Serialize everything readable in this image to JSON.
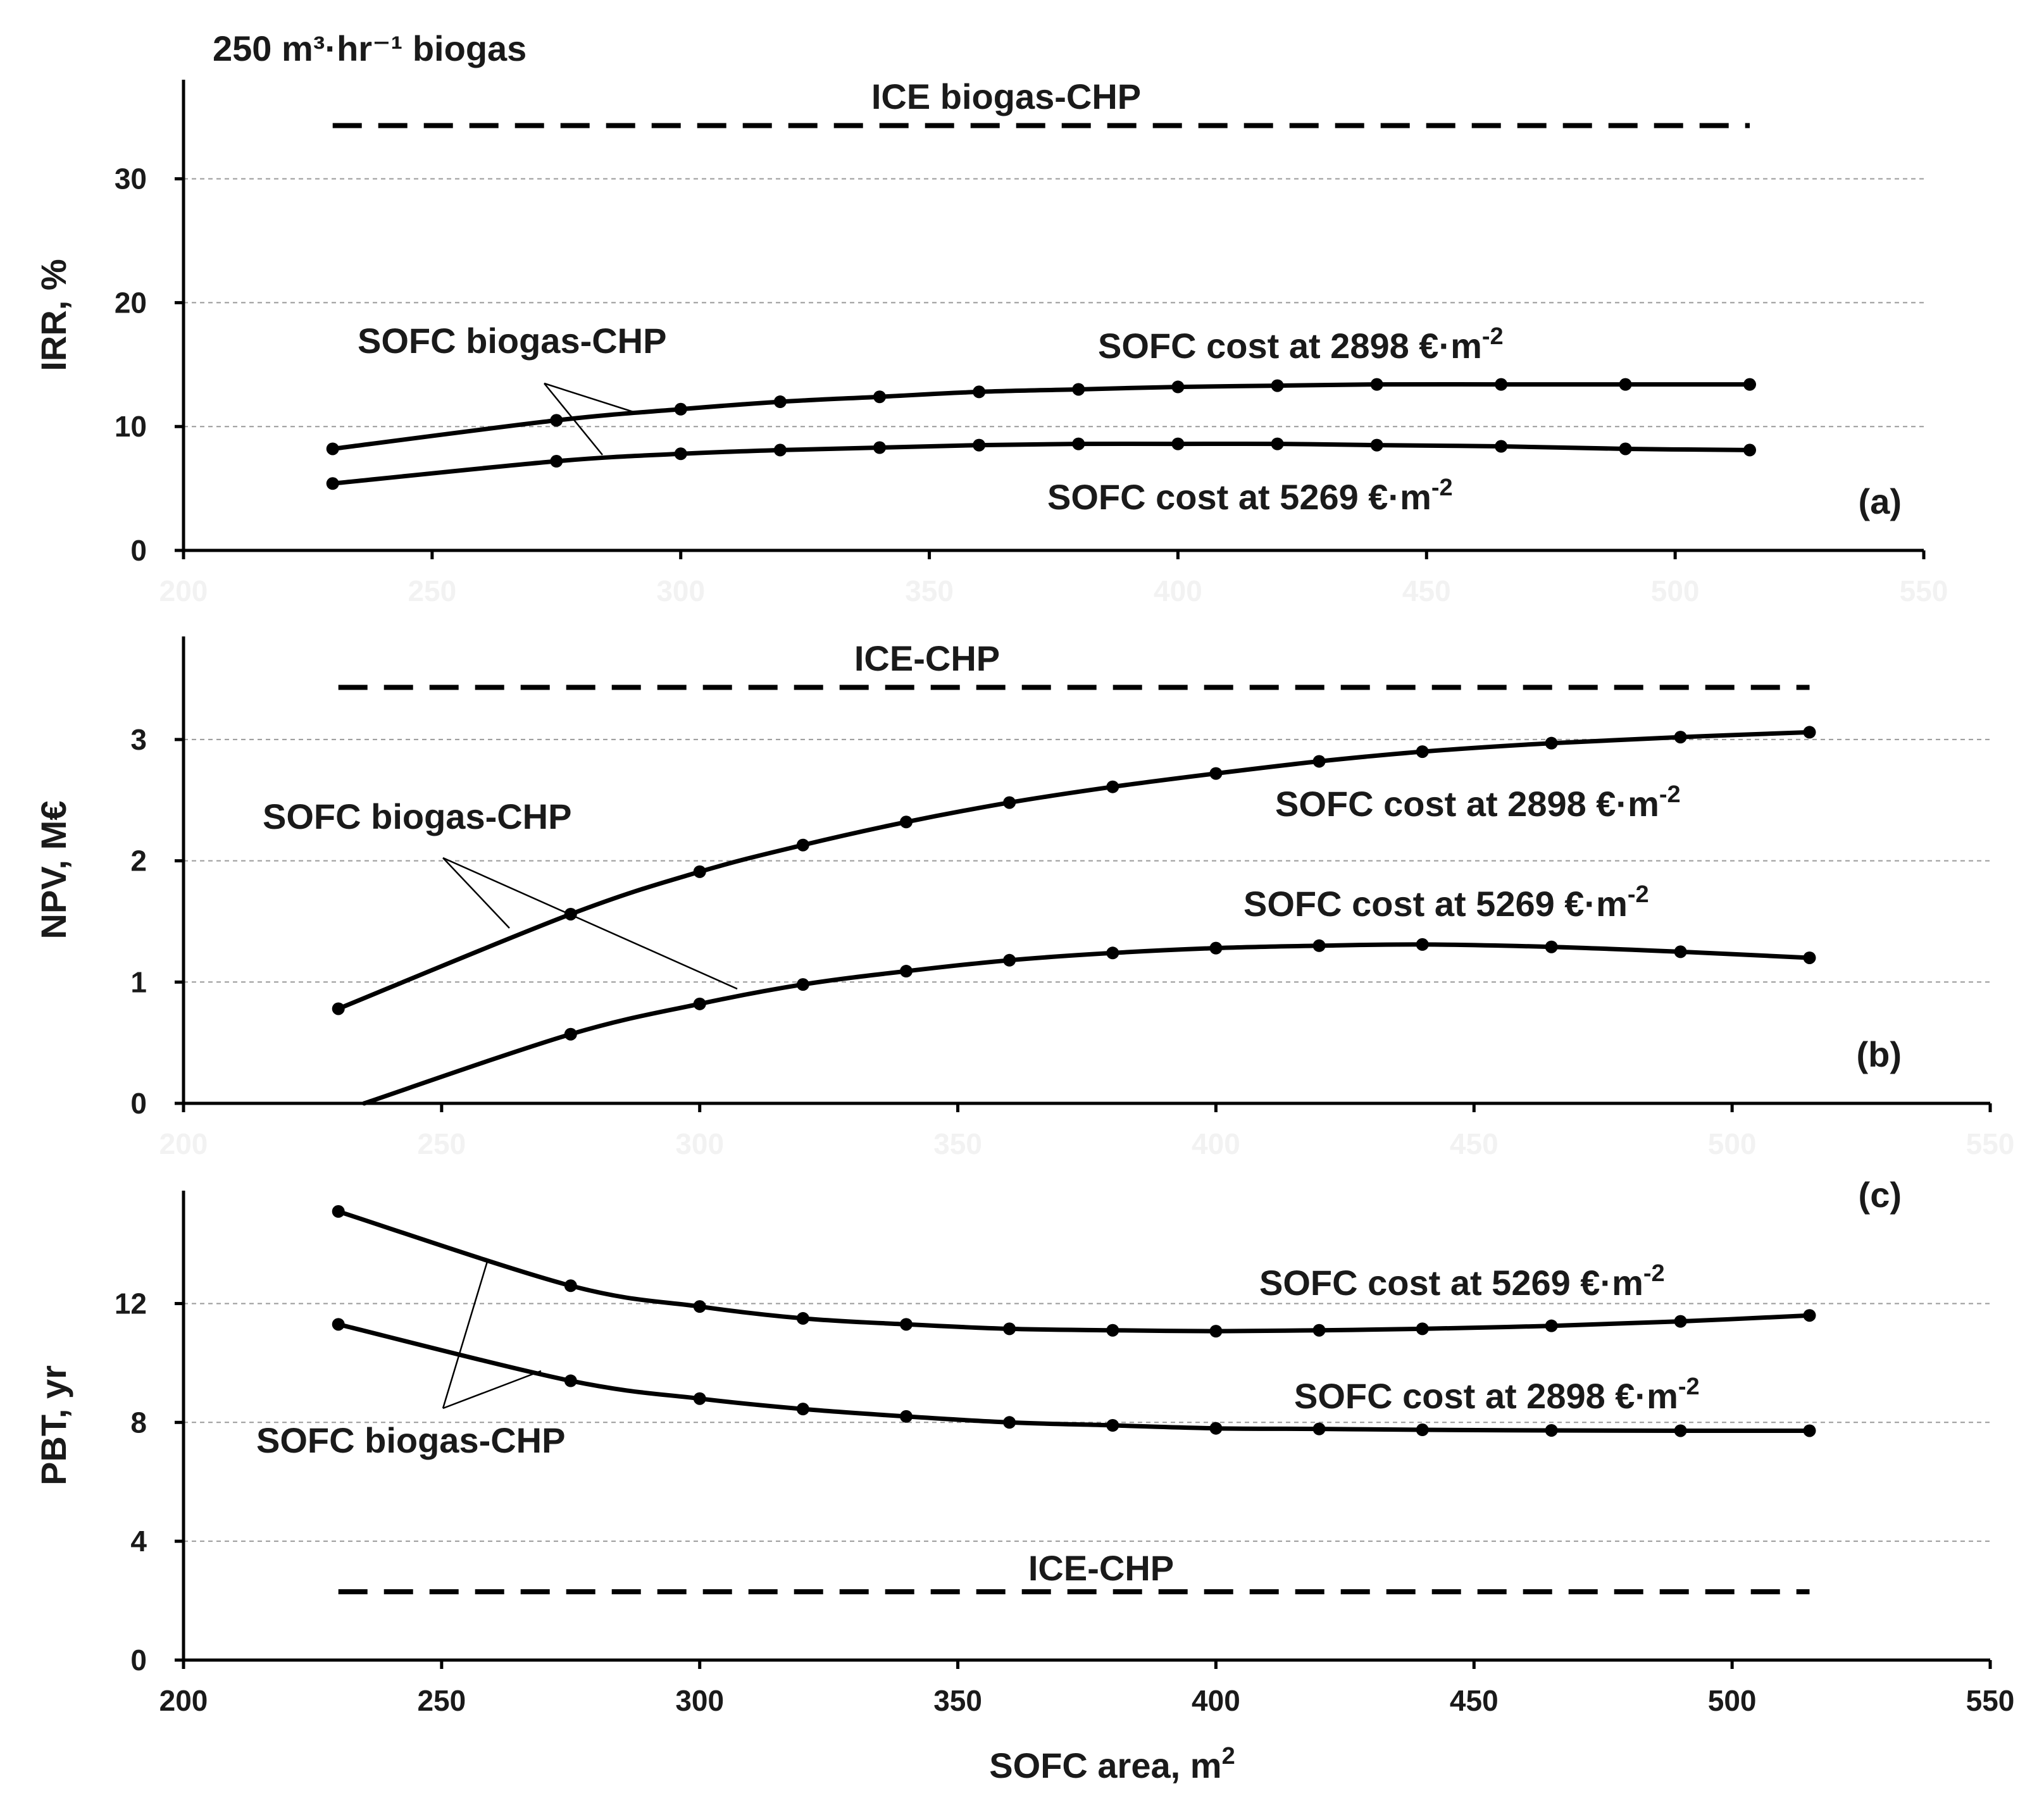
{
  "figure_title": "250 m³·hr⁻¹ biogas",
  "chart_data": [
    {
      "id": "a",
      "type": "line",
      "panel_label": "(a)",
      "ylabel": "IRR, %",
      "xlabel": "",
      "xlim": [
        200,
        550
      ],
      "ylim": [
        0,
        38
      ],
      "xticks": [
        200,
        250,
        300,
        350,
        400,
        450,
        500,
        550
      ],
      "yticks": [
        0,
        10,
        20,
        30
      ],
      "x_tick_labels_visible": false,
      "grid": true,
      "x": [
        230,
        275,
        300,
        320,
        340,
        360,
        380,
        400,
        420,
        440,
        465,
        490,
        515
      ],
      "series": [
        {
          "name": "SOFC cost at 2898 €·m⁻²",
          "label_base": "SOFC cost at 2898 €·m",
          "label_exp": "-2",
          "values": [
            8.2,
            10.5,
            11.4,
            12.0,
            12.4,
            12.8,
            13.0,
            13.2,
            13.3,
            13.4,
            13.4,
            13.4,
            13.4
          ]
        },
        {
          "name": "SOFC cost at 5269 €·m⁻²",
          "label_base": "SOFC cost at 5269 €·m",
          "label_exp": "-2",
          "values": [
            5.4,
            7.2,
            7.8,
            8.1,
            8.3,
            8.5,
            8.6,
            8.6,
            8.6,
            8.5,
            8.4,
            8.2,
            8.1
          ]
        }
      ],
      "reference": {
        "name": "ICE biogas-CHP",
        "value": 34.3,
        "x_range": [
          230,
          515
        ]
      },
      "group_label": "SOFC biogas-CHP"
    },
    {
      "id": "b",
      "type": "line",
      "panel_label": "(b)",
      "ylabel": "NPV, M€",
      "xlabel": "",
      "xlim": [
        200,
        550
      ],
      "ylim": [
        0,
        3.85
      ],
      "xticks": [
        200,
        250,
        300,
        350,
        400,
        450,
        500,
        550
      ],
      "yticks": [
        0,
        1,
        2,
        3
      ],
      "x_tick_labels_visible": false,
      "grid": true,
      "x": [
        230,
        275,
        300,
        320,
        340,
        360,
        380,
        400,
        420,
        440,
        465,
        490,
        515
      ],
      "series": [
        {
          "name": "SOFC cost at 2898 €·m⁻²",
          "label_base": "SOFC cost at 2898 €·m",
          "label_exp": "-2",
          "values": [
            0.78,
            1.56,
            1.91,
            2.13,
            2.32,
            2.48,
            2.61,
            2.72,
            2.82,
            2.9,
            2.97,
            3.02,
            3.06
          ]
        },
        {
          "name": "SOFC cost at 5269 €·m⁻²",
          "label_base": "SOFC cost at 5269 €·m",
          "label_exp": "-2",
          "line_start": [
            235,
            0
          ],
          "values": [
            null,
            0.57,
            0.82,
            0.98,
            1.09,
            1.18,
            1.24,
            1.28,
            1.3,
            1.31,
            1.29,
            1.25,
            1.2
          ]
        }
      ],
      "reference": {
        "name": "ICE-CHP",
        "value": 3.43,
        "x_range": [
          230,
          515
        ]
      },
      "group_label": "SOFC biogas-CHP"
    },
    {
      "id": "c",
      "type": "line",
      "panel_label": "(c)",
      "ylabel": "PBT, yr",
      "xlabel": "SOFC area, m²",
      "xlabel_base": "SOFC area, m",
      "xlabel_exp": "2",
      "xlim": [
        200,
        550
      ],
      "ylim": [
        0,
        15.8
      ],
      "xticks": [
        200,
        250,
        300,
        350,
        400,
        450,
        500,
        550
      ],
      "yticks": [
        0,
        4,
        8,
        12
      ],
      "x_tick_labels_visible": true,
      "grid": true,
      "x": [
        230,
        275,
        300,
        320,
        340,
        360,
        380,
        400,
        420,
        440,
        465,
        490,
        515
      ],
      "series": [
        {
          "name": "SOFC cost at 5269 €·m⁻²",
          "label_base": "SOFC cost at 5269 €·m",
          "label_exp": "-2",
          "values": [
            15.1,
            12.6,
            11.9,
            11.5,
            11.3,
            11.15,
            11.1,
            11.07,
            11.1,
            11.15,
            11.25,
            11.4,
            11.6
          ]
        },
        {
          "name": "SOFC cost at 2898 €·m⁻²",
          "label_base": "SOFC cost at 2898 €·m",
          "label_exp": "-2",
          "values": [
            11.3,
            9.4,
            8.8,
            8.45,
            8.2,
            8.0,
            7.9,
            7.8,
            7.78,
            7.75,
            7.73,
            7.72,
            7.72
          ]
        }
      ],
      "reference": {
        "name": "ICE-CHP",
        "value": 2.3,
        "x_range": [
          230,
          515
        ]
      },
      "group_label": "SOFC biogas-CHP"
    }
  ]
}
